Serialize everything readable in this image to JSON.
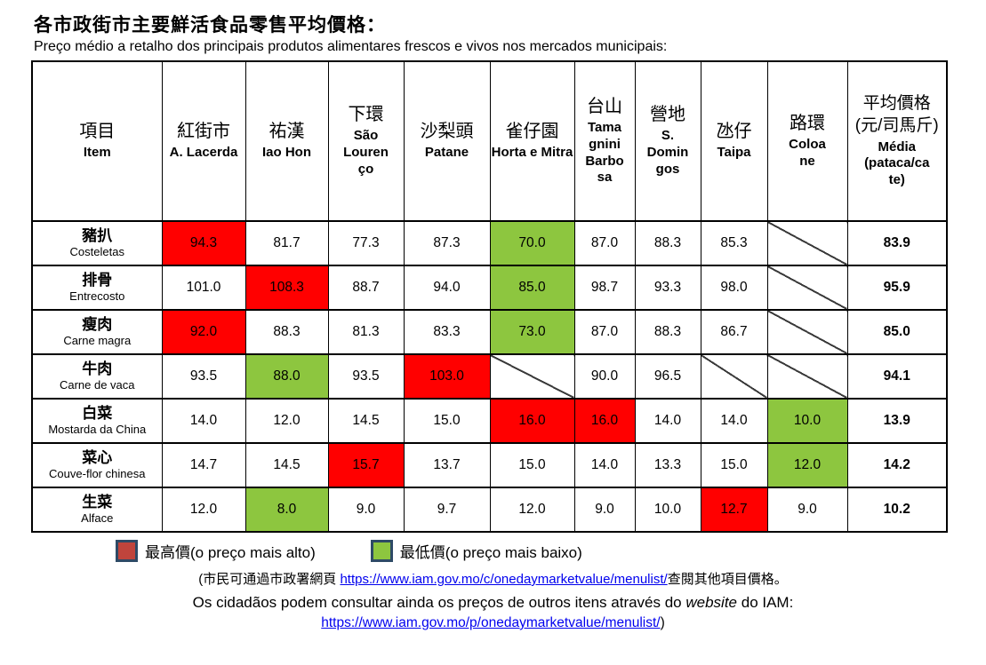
{
  "title_zh": "各市政街市主要鮮活食品零售平均價格：",
  "title_pt": "Preço médio a retalho dos principais produtos alimentares frescos e vivos nos mercados municipais:",
  "colors": {
    "max_highlight": "#ff0000",
    "min_highlight": "#8dc63f",
    "legend_max_fill": "#c0443c",
    "legend_min_fill": "#8dc63f",
    "legend_border": "#2e4a66",
    "link": "#0000ee"
  },
  "table": {
    "item_header": {
      "zh": "項目",
      "en": "Item"
    },
    "columns": [
      {
        "zh": "紅街市",
        "pt": "A. Lacerda"
      },
      {
        "zh": "祐漢",
        "pt": "Iao Hon"
      },
      {
        "zh": "下環",
        "pt": "São Lourenço"
      },
      {
        "zh": "沙梨頭",
        "pt": "Patane"
      },
      {
        "zh": "雀仔園",
        "pt": "Horta e Mitra"
      },
      {
        "zh": "台山",
        "pt": "Tamagnini Barbosa"
      },
      {
        "zh": "營地",
        "pt": "S. Domingos"
      },
      {
        "zh": "氹仔",
        "pt": "Taipa"
      },
      {
        "zh": "路環",
        "pt": "Coloane"
      }
    ],
    "avg_header": {
      "zh": "平均價格(元/司馬斤)",
      "pt": "Média (pataca/cate)"
    },
    "rows": [
      {
        "zh": "豬扒",
        "pt": "Costeletas",
        "cells": [
          {
            "v": "94.3",
            "h": "max"
          },
          {
            "v": "81.7"
          },
          {
            "v": "77.3"
          },
          {
            "v": "87.3"
          },
          {
            "v": "70.0",
            "h": "min"
          },
          {
            "v": "87.0"
          },
          {
            "v": "88.3"
          },
          {
            "v": "85.3"
          },
          {
            "v": null
          }
        ],
        "avg": "83.9"
      },
      {
        "zh": "排骨",
        "pt": "Entrecosto",
        "cells": [
          {
            "v": "101.0"
          },
          {
            "v": "108.3",
            "h": "max"
          },
          {
            "v": "88.7"
          },
          {
            "v": "94.0"
          },
          {
            "v": "85.0",
            "h": "min"
          },
          {
            "v": "98.7"
          },
          {
            "v": "93.3"
          },
          {
            "v": "98.0"
          },
          {
            "v": null
          }
        ],
        "avg": "95.9"
      },
      {
        "zh": "瘦肉",
        "pt": "Carne magra",
        "cells": [
          {
            "v": "92.0",
            "h": "max"
          },
          {
            "v": "88.3"
          },
          {
            "v": "81.3"
          },
          {
            "v": "83.3"
          },
          {
            "v": "73.0",
            "h": "min"
          },
          {
            "v": "87.0"
          },
          {
            "v": "88.3"
          },
          {
            "v": "86.7"
          },
          {
            "v": null
          }
        ],
        "avg": "85.0"
      },
      {
        "zh": "牛肉",
        "pt": "Carne de vaca",
        "cells": [
          {
            "v": "93.5"
          },
          {
            "v": "88.0",
            "h": "min"
          },
          {
            "v": "93.5"
          },
          {
            "v": "103.0",
            "h": "max"
          },
          {
            "v": null
          },
          {
            "v": "90.0"
          },
          {
            "v": "96.5"
          },
          {
            "v": null
          },
          {
            "v": null
          }
        ],
        "avg": "94.1"
      },
      {
        "zh": "白菜",
        "pt": "Mostarda da China",
        "cells": [
          {
            "v": "14.0"
          },
          {
            "v": "12.0"
          },
          {
            "v": "14.5"
          },
          {
            "v": "15.0"
          },
          {
            "v": "16.0",
            "h": "max"
          },
          {
            "v": "16.0",
            "h": "max"
          },
          {
            "v": "14.0"
          },
          {
            "v": "14.0"
          },
          {
            "v": "10.0",
            "h": "min"
          }
        ],
        "avg": "13.9"
      },
      {
        "zh": "菜心",
        "pt": "Couve-flor chinesa",
        "cells": [
          {
            "v": "14.7"
          },
          {
            "v": "14.5"
          },
          {
            "v": "15.7",
            "h": "max"
          },
          {
            "v": "13.7"
          },
          {
            "v": "15.0"
          },
          {
            "v": "14.0"
          },
          {
            "v": "13.3"
          },
          {
            "v": "15.0"
          },
          {
            "v": "12.0",
            "h": "min"
          }
        ],
        "avg": "14.2"
      },
      {
        "zh": "生菜",
        "pt": "Alface",
        "cells": [
          {
            "v": "12.0"
          },
          {
            "v": "8.0",
            "h": "min"
          },
          {
            "v": "9.0"
          },
          {
            "v": "9.7"
          },
          {
            "v": "12.0"
          },
          {
            "v": "9.0"
          },
          {
            "v": "10.0"
          },
          {
            "v": "12.7",
            "h": "max"
          },
          {
            "v": "9.0"
          }
        ],
        "avg": "10.2"
      }
    ]
  },
  "legend": {
    "max_label": "最高價(o preço mais alto)",
    "min_label": "最低價(o preço mais baixo)"
  },
  "footer": {
    "line1_prefix": "(市民可通過市政署網頁 ",
    "line1_link": "https://www.iam.gov.mo/c/onedaymarketvalue/menulist/",
    "line1_suffix": "查閱其他項目價格。",
    "line2_prefix": "Os cidadãos podem consultar ainda os preços de outros itens através do ",
    "line2_italic": "website",
    "line2_suffix": " do IAM:",
    "line3_link": "https://www.iam.gov.mo/p/onedaymarketvalue/menulist/",
    "line3_suffix": ")"
  }
}
